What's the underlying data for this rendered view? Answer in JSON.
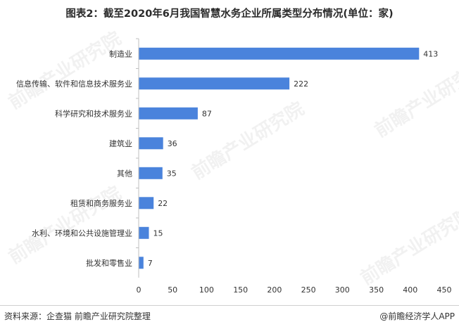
{
  "title": "图表2：截至2020年6月我国智慧水务企业所属类型分布情况(单位：家)",
  "source": "资料来源：企查猫 前瞻产业研究院整理",
  "brand": "@前瞻经济学人APP",
  "watermark": "前瞻产业研究院",
  "chart_data": {
    "type": "bar",
    "orientation": "horizontal",
    "categories": [
      "制造业",
      "信息传输、软件和信息技术服务业",
      "科学研究和技术服务业",
      "建筑业",
      "其他",
      "租赁和商务服务业",
      "水利、环境和公共设施管理业",
      "批发和零售业"
    ],
    "values": [
      413,
      222,
      87,
      36,
      35,
      22,
      15,
      7
    ],
    "xlim": [
      0,
      450
    ],
    "xticks": [
      0,
      50,
      100,
      150,
      200,
      250,
      300,
      350,
      400,
      450
    ],
    "grid": false,
    "legend": "none",
    "bar_color": "#4a83dc"
  }
}
